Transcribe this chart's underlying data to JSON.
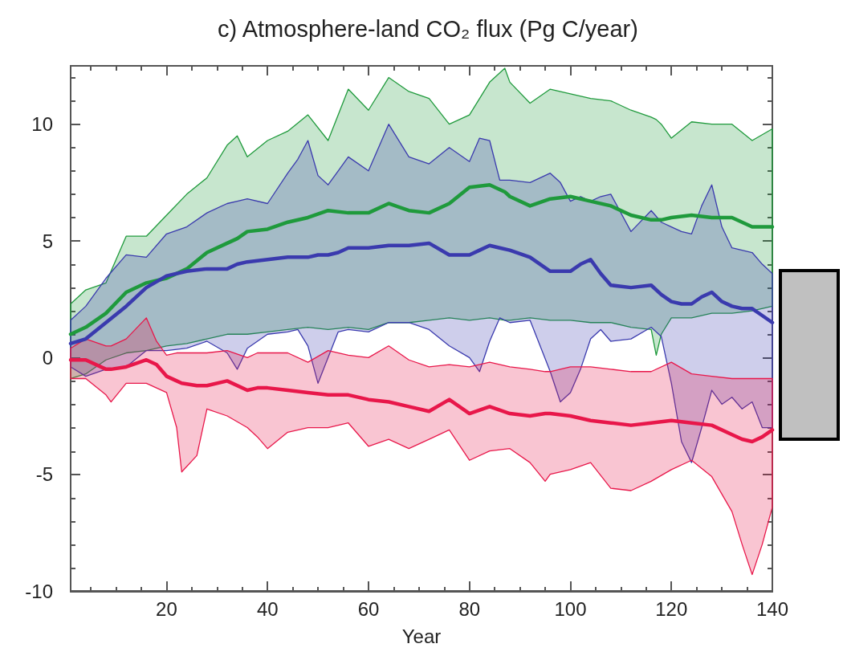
{
  "chart_data": {
    "type": "line",
    "title": "c) Atmosphere-land CO₂ flux (Pg C/year)",
    "xlabel": "Year",
    "xlim": [
      1,
      140
    ],
    "ylim": [
      -10,
      12.5
    ],
    "xticks": [
      {
        "value": 5,
        "label": null
      },
      {
        "value": 10,
        "label": null
      },
      {
        "value": 15,
        "label": null
      },
      20,
      {
        "value": 25,
        "label": null
      },
      {
        "value": 30,
        "label": null
      },
      {
        "value": 35,
        "label": null
      },
      40,
      {
        "value": 45,
        "label": null
      },
      {
        "value": 50,
        "label": null
      },
      {
        "value": 55,
        "label": null
      },
      60,
      {
        "value": 65,
        "label": null
      },
      {
        "value": 70,
        "label": null
      },
      {
        "value": 75,
        "label": null
      },
      80,
      {
        "value": 85,
        "label": null
      },
      {
        "value": 90,
        "label": null
      },
      {
        "value": 95,
        "label": null
      },
      100,
      {
        "value": 105,
        "label": null
      },
      {
        "value": 110,
        "label": null
      },
      {
        "value": 115,
        "label": null
      },
      120,
      {
        "value": 125,
        "label": null
      },
      {
        "value": 130,
        "label": null
      },
      {
        "value": 135,
        "label": null
      },
      140
    ],
    "yticks": [
      -10,
      {
        "value": -9,
        "label": null
      },
      {
        "value": -8,
        "label": null
      },
      {
        "value": -7,
        "label": null
      },
      {
        "value": -6,
        "label": null
      },
      -5,
      {
        "value": -4,
        "label": null
      },
      {
        "value": -3,
        "label": null
      },
      {
        "value": -2,
        "label": null
      },
      {
        "value": -1,
        "label": null
      },
      0,
      {
        "value": 1,
        "label": null
      },
      {
        "value": 2,
        "label": null
      },
      {
        "value": 3,
        "label": null
      },
      {
        "value": 4,
        "label": null
      },
      5,
      {
        "value": 6,
        "label": null
      },
      {
        "value": 7,
        "label": null
      },
      {
        "value": 8,
        "label": null
      },
      {
        "value": 9,
        "label": null
      },
      10,
      {
        "value": 11,
        "label": null
      },
      {
        "value": 12,
        "label": null
      }
    ],
    "grid": false,
    "marker": "none",
    "series": [
      {
        "color": "#1f9a3c",
        "x": [
          1,
          4,
          8,
          12,
          16,
          20,
          24,
          28,
          32,
          34,
          36,
          40,
          44,
          48,
          52,
          56,
          60,
          64,
          68,
          72,
          76,
          80,
          84,
          87,
          88,
          92,
          96,
          100,
          104,
          108,
          112,
          116,
          117,
          118,
          120,
          124,
          128,
          132,
          136,
          140
        ],
        "values": [
          1.0,
          1.3,
          1.9,
          2.8,
          3.2,
          3.4,
          3.8,
          4.5,
          4.9,
          5.1,
          5.4,
          5.5,
          5.8,
          6.0,
          6.3,
          6.2,
          6.2,
          6.6,
          6.3,
          6.2,
          6.6,
          7.3,
          7.4,
          7.1,
          6.9,
          6.5,
          6.8,
          6.9,
          6.7,
          6.5,
          6.1,
          5.9,
          5.9,
          5.9,
          6.0,
          6.1,
          6.0,
          6.0,
          5.6,
          5.6
        ],
        "upper": [
          2.3,
          2.9,
          3.2,
          5.2,
          5.2,
          6.1,
          7.0,
          7.7,
          9.1,
          9.5,
          8.6,
          9.3,
          9.7,
          10.4,
          9.3,
          11.5,
          10.6,
          12.0,
          11.4,
          11.1,
          10.0,
          10.4,
          11.8,
          12.4,
          11.8,
          10.9,
          11.5,
          11.3,
          11.1,
          11.0,
          10.6,
          10.3,
          10.2,
          10.0,
          9.4,
          10.1,
          10.0,
          10.0,
          9.3,
          9.8
        ],
        "lower": [
          -0.9,
          -0.7,
          -0.1,
          0.2,
          0.3,
          0.5,
          0.6,
          0.8,
          1.0,
          1.0,
          1.0,
          1.1,
          1.2,
          1.3,
          1.2,
          1.3,
          1.2,
          1.5,
          1.5,
          1.6,
          1.7,
          1.6,
          1.7,
          1.6,
          1.6,
          1.7,
          1.6,
          1.6,
          1.5,
          1.5,
          1.3,
          1.2,
          0.1,
          1.0,
          1.7,
          1.7,
          1.9,
          1.9,
          2.0,
          2.2
        ]
      },
      {
        "color": "#3a3aae",
        "x": [
          1,
          4,
          8,
          12,
          16,
          20,
          24,
          28,
          32,
          34,
          36,
          40,
          44,
          46,
          48,
          50,
          52,
          54,
          56,
          60,
          64,
          68,
          72,
          76,
          80,
          82,
          84,
          86,
          88,
          92,
          96,
          98,
          100,
          102,
          104,
          106,
          108,
          112,
          116,
          118,
          120,
          122,
          124,
          126,
          128,
          130,
          132,
          134,
          136,
          138,
          140
        ],
        "values": [
          0.6,
          0.8,
          1.5,
          2.2,
          3.0,
          3.5,
          3.7,
          3.8,
          3.8,
          4.0,
          4.1,
          4.2,
          4.3,
          4.3,
          4.3,
          4.4,
          4.4,
          4.5,
          4.7,
          4.7,
          4.8,
          4.8,
          4.9,
          4.4,
          4.4,
          4.6,
          4.8,
          4.7,
          4.6,
          4.3,
          3.7,
          3.7,
          3.7,
          4.0,
          4.2,
          3.6,
          3.1,
          3.0,
          3.1,
          2.7,
          2.4,
          2.3,
          2.3,
          2.6,
          2.8,
          2.4,
          2.2,
          2.1,
          2.1,
          1.8,
          1.5
        ],
        "upper": [
          1.6,
          2.2,
          3.4,
          4.4,
          4.3,
          5.3,
          5.6,
          6.2,
          6.6,
          6.7,
          6.8,
          6.6,
          7.9,
          8.5,
          9.3,
          7.8,
          7.4,
          8.0,
          8.6,
          8.0,
          10.0,
          8.6,
          8.3,
          9.0,
          8.4,
          9.4,
          9.3,
          7.6,
          7.6,
          7.5,
          7.9,
          7.5,
          6.7,
          6.9,
          6.7,
          6.9,
          7.0,
          5.4,
          6.3,
          5.8,
          5.6,
          5.4,
          5.3,
          6.5,
          7.4,
          5.6,
          4.7,
          4.6,
          4.5,
          4.0,
          3.6
        ],
        "lower": [
          -0.4,
          -0.8,
          -0.5,
          -0.4,
          0.3,
          0.3,
          0.4,
          0.7,
          0.2,
          -0.5,
          0.4,
          1.0,
          1.1,
          1.2,
          0.5,
          -1.1,
          0.0,
          1.1,
          1.2,
          1.1,
          1.5,
          1.5,
          1.2,
          0.5,
          0.0,
          -0.6,
          0.7,
          1.7,
          1.5,
          1.6,
          -0.6,
          -1.9,
          -1.5,
          -0.5,
          0.8,
          1.2,
          0.7,
          0.8,
          1.3,
          0.9,
          -1.1,
          -3.6,
          -4.5,
          -3.0,
          -1.4,
          -2.0,
          -1.7,
          -2.2,
          -1.9,
          -3.0,
          -3.0
        ]
      },
      {
        "color": "#e8174a",
        "x": [
          1,
          4,
          8,
          9,
          12,
          16,
          18,
          20,
          22,
          23,
          26,
          28,
          32,
          36,
          38,
          40,
          44,
          48,
          52,
          56,
          60,
          64,
          68,
          72,
          76,
          80,
          84,
          88,
          92,
          95,
          96,
          100,
          104,
          108,
          112,
          116,
          120,
          124,
          128,
          132,
          134,
          136,
          138,
          140
        ],
        "values": [
          -0.1,
          -0.1,
          -0.5,
          -0.5,
          -0.4,
          -0.1,
          -0.3,
          -0.8,
          -1.0,
          -1.1,
          -1.2,
          -1.2,
          -1.0,
          -1.4,
          -1.3,
          -1.3,
          -1.4,
          -1.5,
          -1.6,
          -1.6,
          -1.8,
          -1.9,
          -2.1,
          -2.3,
          -1.8,
          -2.4,
          -2.1,
          -2.4,
          -2.5,
          -2.4,
          -2.4,
          -2.5,
          -2.7,
          -2.8,
          -2.9,
          -2.8,
          -2.7,
          -2.8,
          -2.9,
          -3.3,
          -3.5,
          -3.6,
          -3.4,
          -3.1
        ],
        "upper": [
          0.4,
          0.8,
          0.5,
          0.5,
          0.8,
          1.7,
          0.7,
          0.1,
          0.2,
          0.2,
          0.2,
          0.2,
          0.3,
          0.0,
          0.2,
          0.2,
          0.2,
          -0.2,
          0.3,
          0.1,
          0.0,
          0.5,
          -0.1,
          -0.4,
          -0.3,
          -0.4,
          -0.2,
          -0.4,
          -0.5,
          -0.6,
          -0.6,
          -0.4,
          -0.4,
          -0.5,
          -0.6,
          -0.6,
          -0.2,
          -0.7,
          -0.8,
          -0.9,
          -0.9,
          -0.9,
          -0.9,
          -0.9
        ],
        "lower": [
          -0.9,
          -0.9,
          -1.6,
          -1.9,
          -1.1,
          -1.1,
          -1.3,
          -1.5,
          -3.0,
          -4.9,
          -4.2,
          -2.2,
          -2.5,
          -3.0,
          -3.4,
          -3.9,
          -3.2,
          -3.0,
          -3.0,
          -2.8,
          -3.8,
          -3.5,
          -3.9,
          -3.5,
          -3.1,
          -4.4,
          -4.0,
          -3.9,
          -4.5,
          -5.3,
          -5.0,
          -4.8,
          -4.5,
          -5.6,
          -5.7,
          -5.3,
          -4.8,
          -4.4,
          -5.1,
          -6.6,
          -8.0,
          -9.3,
          -8.0,
          -6.4
        ]
      }
    ]
  }
}
